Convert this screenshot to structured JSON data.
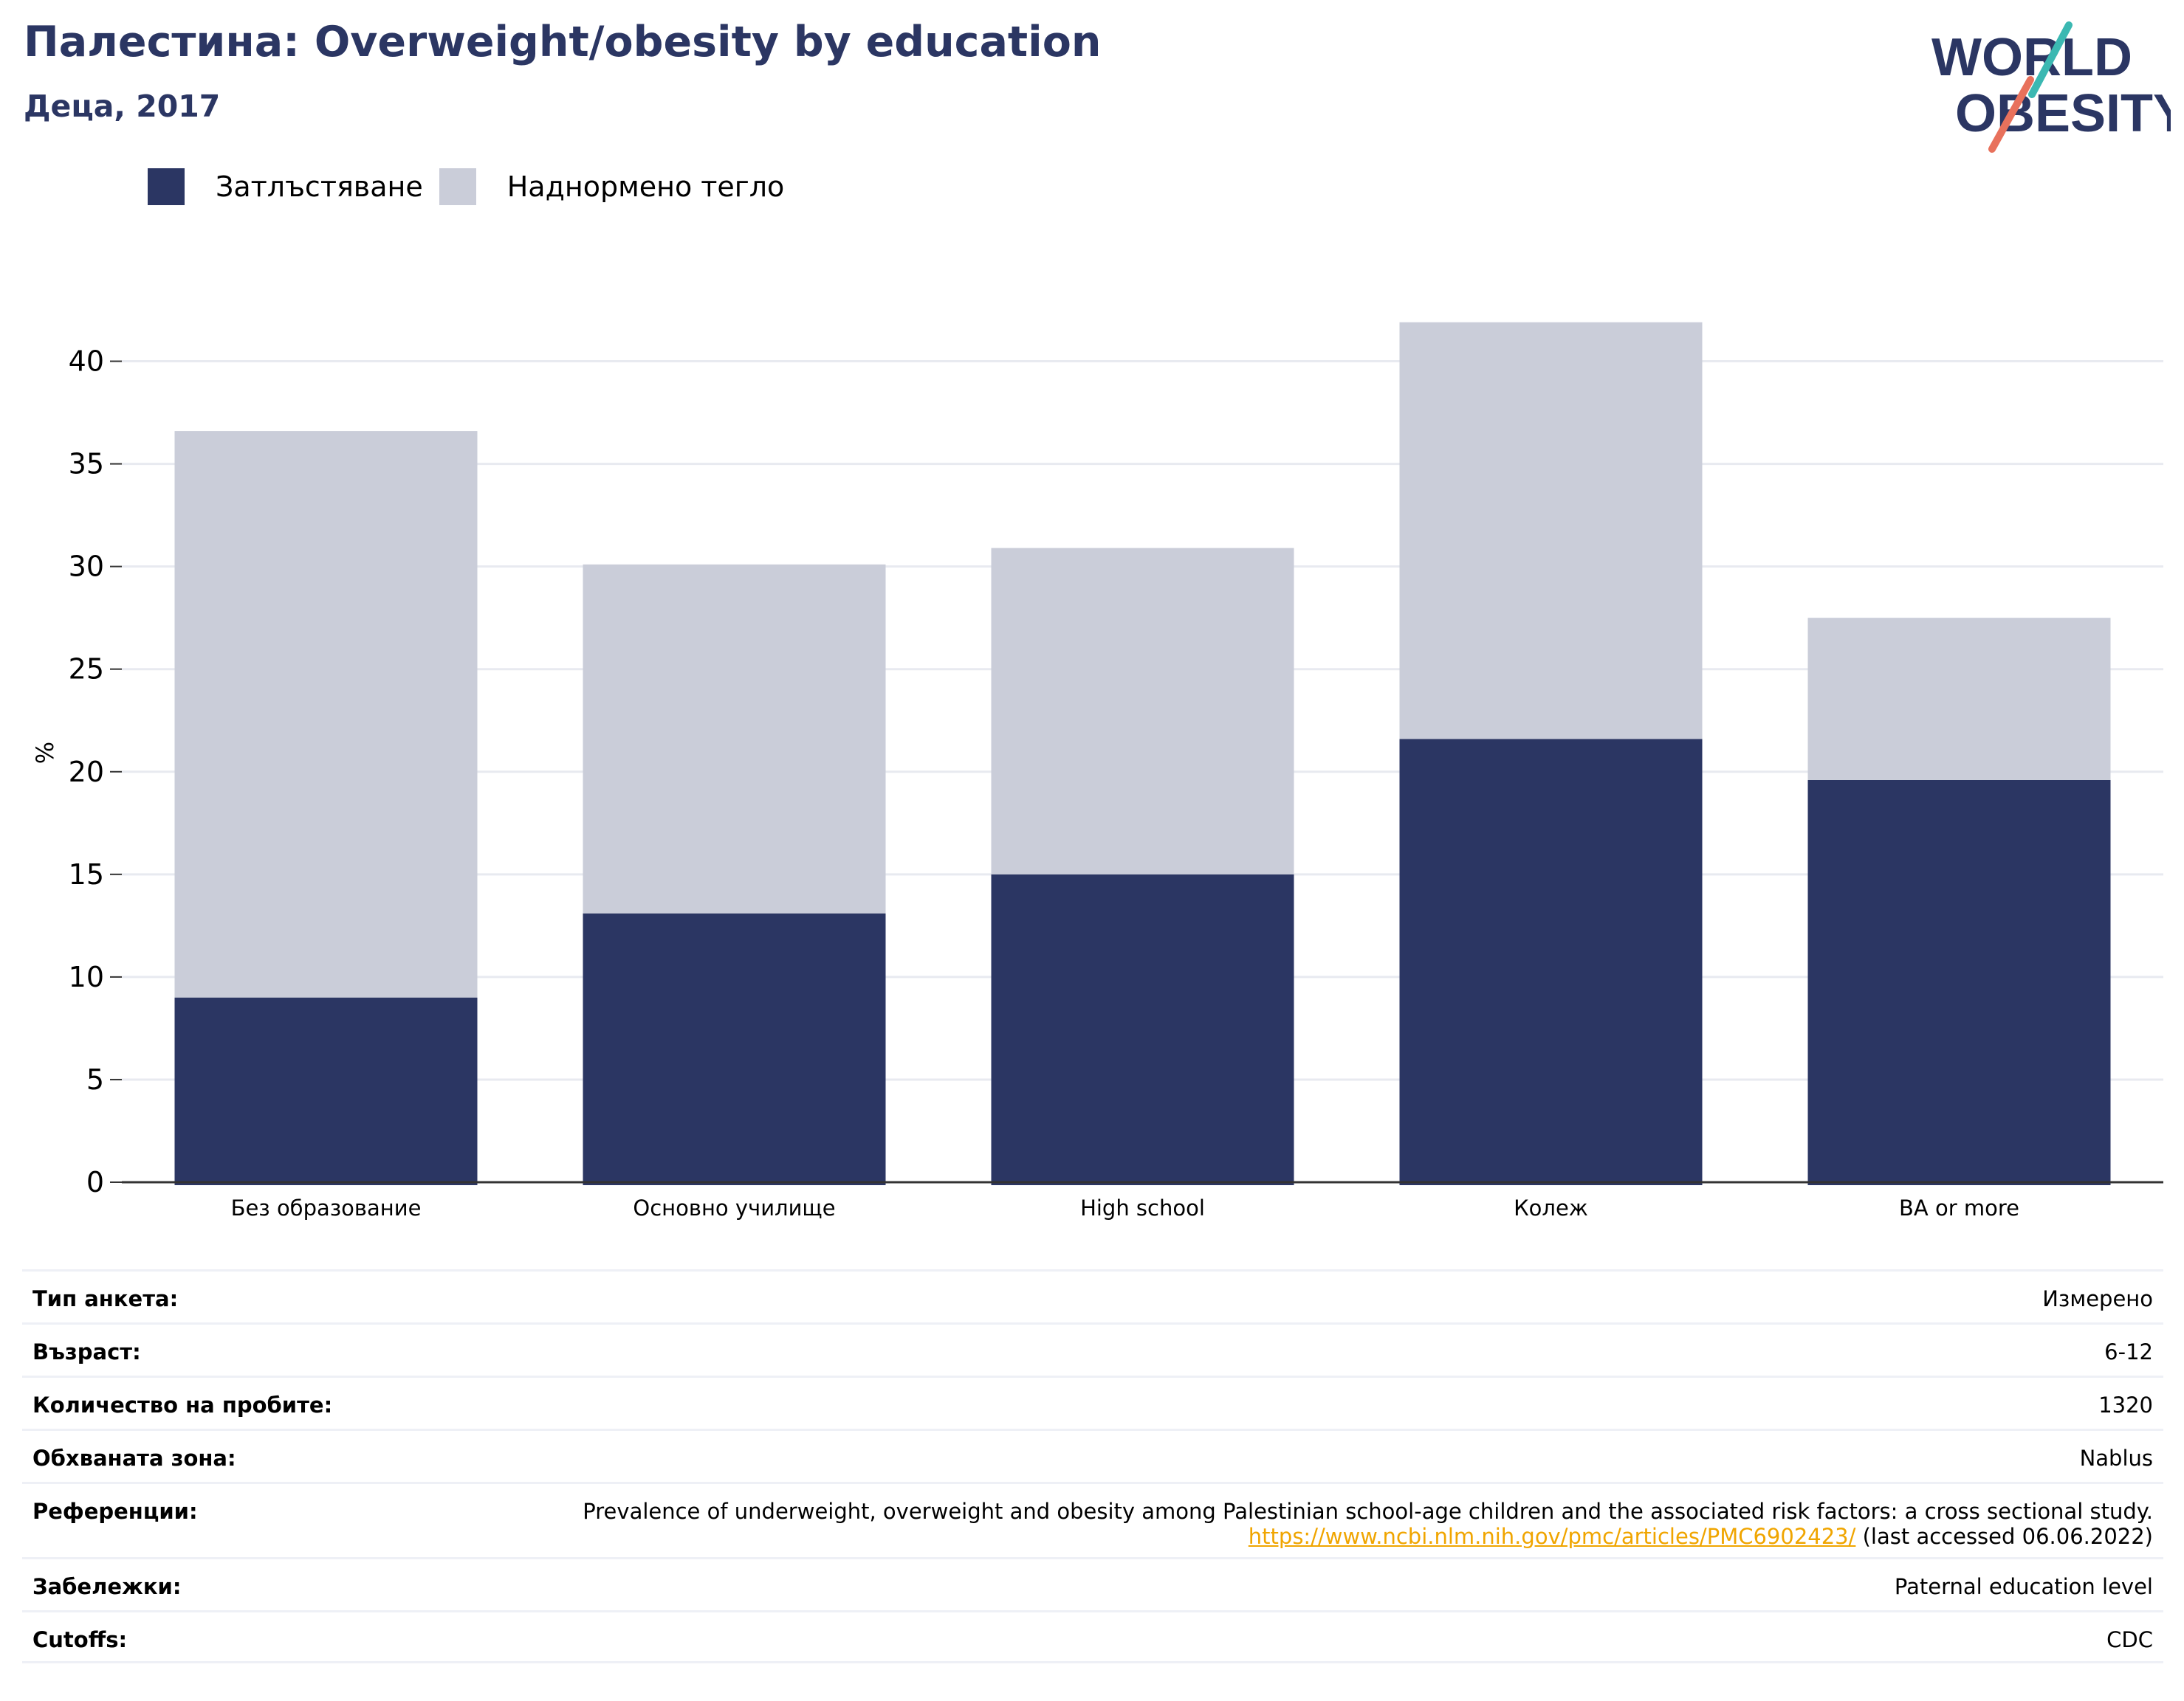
{
  "header": {
    "title": "Палестина: Overweight/obesity by education",
    "subtitle": "Деца, 2017"
  },
  "logo": {
    "line1": "WORLD",
    "line2": "OBESITY"
  },
  "colors": {
    "obesity": "#2b3663",
    "overweight": "#cacdd9",
    "title": "#2b3663",
    "link": "#f0a500",
    "logo_teal": "#3bb8b2",
    "logo_coral": "#e8715c"
  },
  "chart_data": {
    "type": "bar",
    "stacked": true,
    "categories": [
      "Без образование",
      "Основно училище",
      "High school",
      "Колеж",
      "BA or more"
    ],
    "series": [
      {
        "name": "Затлъстяване",
        "values": [
          9.0,
          13.1,
          15.0,
          21.6,
          19.6
        ]
      },
      {
        "name": "Наднормено тегло",
        "values": [
          27.6,
          17.0,
          15.9,
          20.3,
          7.9
        ]
      }
    ],
    "ylabel": "%",
    "ylim": [
      0,
      42.5
    ],
    "yticks": [
      0,
      5,
      10,
      15,
      20,
      25,
      30,
      35,
      40
    ],
    "grid": true,
    "legend": "top-left"
  },
  "meta": {
    "rows": [
      {
        "label": "Тип анкета:",
        "value": "Измерено"
      },
      {
        "label": "Възраст:",
        "value": "6-12"
      },
      {
        "label": "Количество на пробите:",
        "value": "1320"
      },
      {
        "label": "Обхваната зона:",
        "value": "Nablus"
      },
      {
        "label": "Референции:",
        "value": "Prevalence of underweight, overweight and obesity among Palestinian school-age children and the associated risk factors: a cross sectional study.",
        "link": "https://www.ncbi.nlm.nih.gov/pmc/articles/PMC6902423/",
        "suffix": "(last accessed 06.06.2022)"
      },
      {
        "label": "Забележки:",
        "value": "Paternal education level"
      },
      {
        "label": "Cutoffs:",
        "value": "CDC"
      }
    ]
  }
}
